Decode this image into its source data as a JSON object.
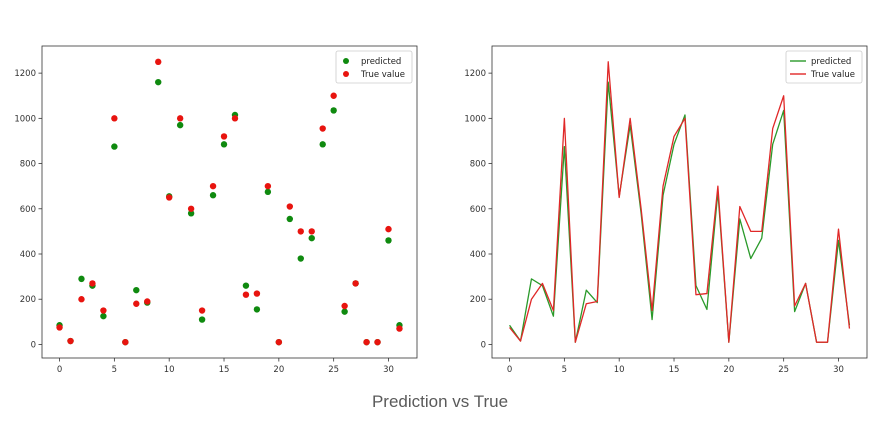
{
  "caption": "Prediction vs True",
  "colors": {
    "predicted_scatter": "#0f8a0f",
    "true_scatter": "#e8140f",
    "predicted_line": "#2a9a2a",
    "true_line": "#e02828"
  },
  "chart_data": [
    {
      "type": "scatter",
      "xlim": [
        -1.6,
        32.6
      ],
      "ylim": [
        -60,
        1320
      ],
      "xticks": [
        0,
        5,
        10,
        15,
        20,
        25,
        30
      ],
      "yticks": [
        0,
        200,
        400,
        600,
        800,
        1000,
        1200
      ],
      "legend_position": "top-right",
      "x": [
        0,
        1,
        2,
        3,
        4,
        5,
        6,
        7,
        8,
        9,
        10,
        11,
        12,
        13,
        14,
        15,
        16,
        17,
        18,
        19,
        20,
        21,
        22,
        23,
        24,
        25,
        26,
        27,
        28,
        29,
        30,
        31
      ],
      "series": [
        {
          "name": "predicted",
          "color": "#0f8a0f",
          "values": [
            85,
            15,
            290,
            260,
            125,
            875,
            10,
            240,
            185,
            1160,
            655,
            970,
            580,
            110,
            660,
            885,
            1015,
            260,
            155,
            675,
            10,
            555,
            380,
            470,
            885,
            1035,
            145,
            270,
            10,
            10,
            460,
            85
          ]
        },
        {
          "name": "True value",
          "color": "#e8140f",
          "values": [
            75,
            15,
            200,
            270,
            150,
            1000,
            10,
            180,
            190,
            1250,
            650,
            1000,
            600,
            150,
            700,
            920,
            1000,
            220,
            225,
            700,
            10,
            610,
            500,
            500,
            955,
            1100,
            170,
            270,
            10,
            10,
            510,
            70
          ]
        }
      ]
    },
    {
      "type": "line",
      "xlim": [
        -1.6,
        32.6
      ],
      "ylim": [
        -60,
        1320
      ],
      "xticks": [
        0,
        5,
        10,
        15,
        20,
        25,
        30
      ],
      "yticks": [
        0,
        200,
        400,
        600,
        800,
        1000,
        1200
      ],
      "legend_position": "top-right",
      "x": [
        0,
        1,
        2,
        3,
        4,
        5,
        6,
        7,
        8,
        9,
        10,
        11,
        12,
        13,
        14,
        15,
        16,
        17,
        18,
        19,
        20,
        21,
        22,
        23,
        24,
        25,
        26,
        27,
        28,
        29,
        30,
        31
      ],
      "series": [
        {
          "name": "predicted",
          "color": "#2a9a2a",
          "values": [
            85,
            15,
            290,
            260,
            125,
            875,
            10,
            240,
            185,
            1160,
            655,
            970,
            580,
            110,
            660,
            885,
            1015,
            260,
            155,
            675,
            10,
            555,
            380,
            470,
            885,
            1035,
            145,
            270,
            10,
            10,
            460,
            85
          ]
        },
        {
          "name": "True value",
          "color": "#e02828",
          "values": [
            75,
            15,
            200,
            270,
            150,
            1000,
            10,
            180,
            190,
            1250,
            650,
            1000,
            600,
            150,
            700,
            920,
            1000,
            220,
            225,
            700,
            10,
            610,
            500,
            500,
            955,
            1100,
            170,
            270,
            10,
            10,
            510,
            70
          ]
        }
      ]
    }
  ]
}
